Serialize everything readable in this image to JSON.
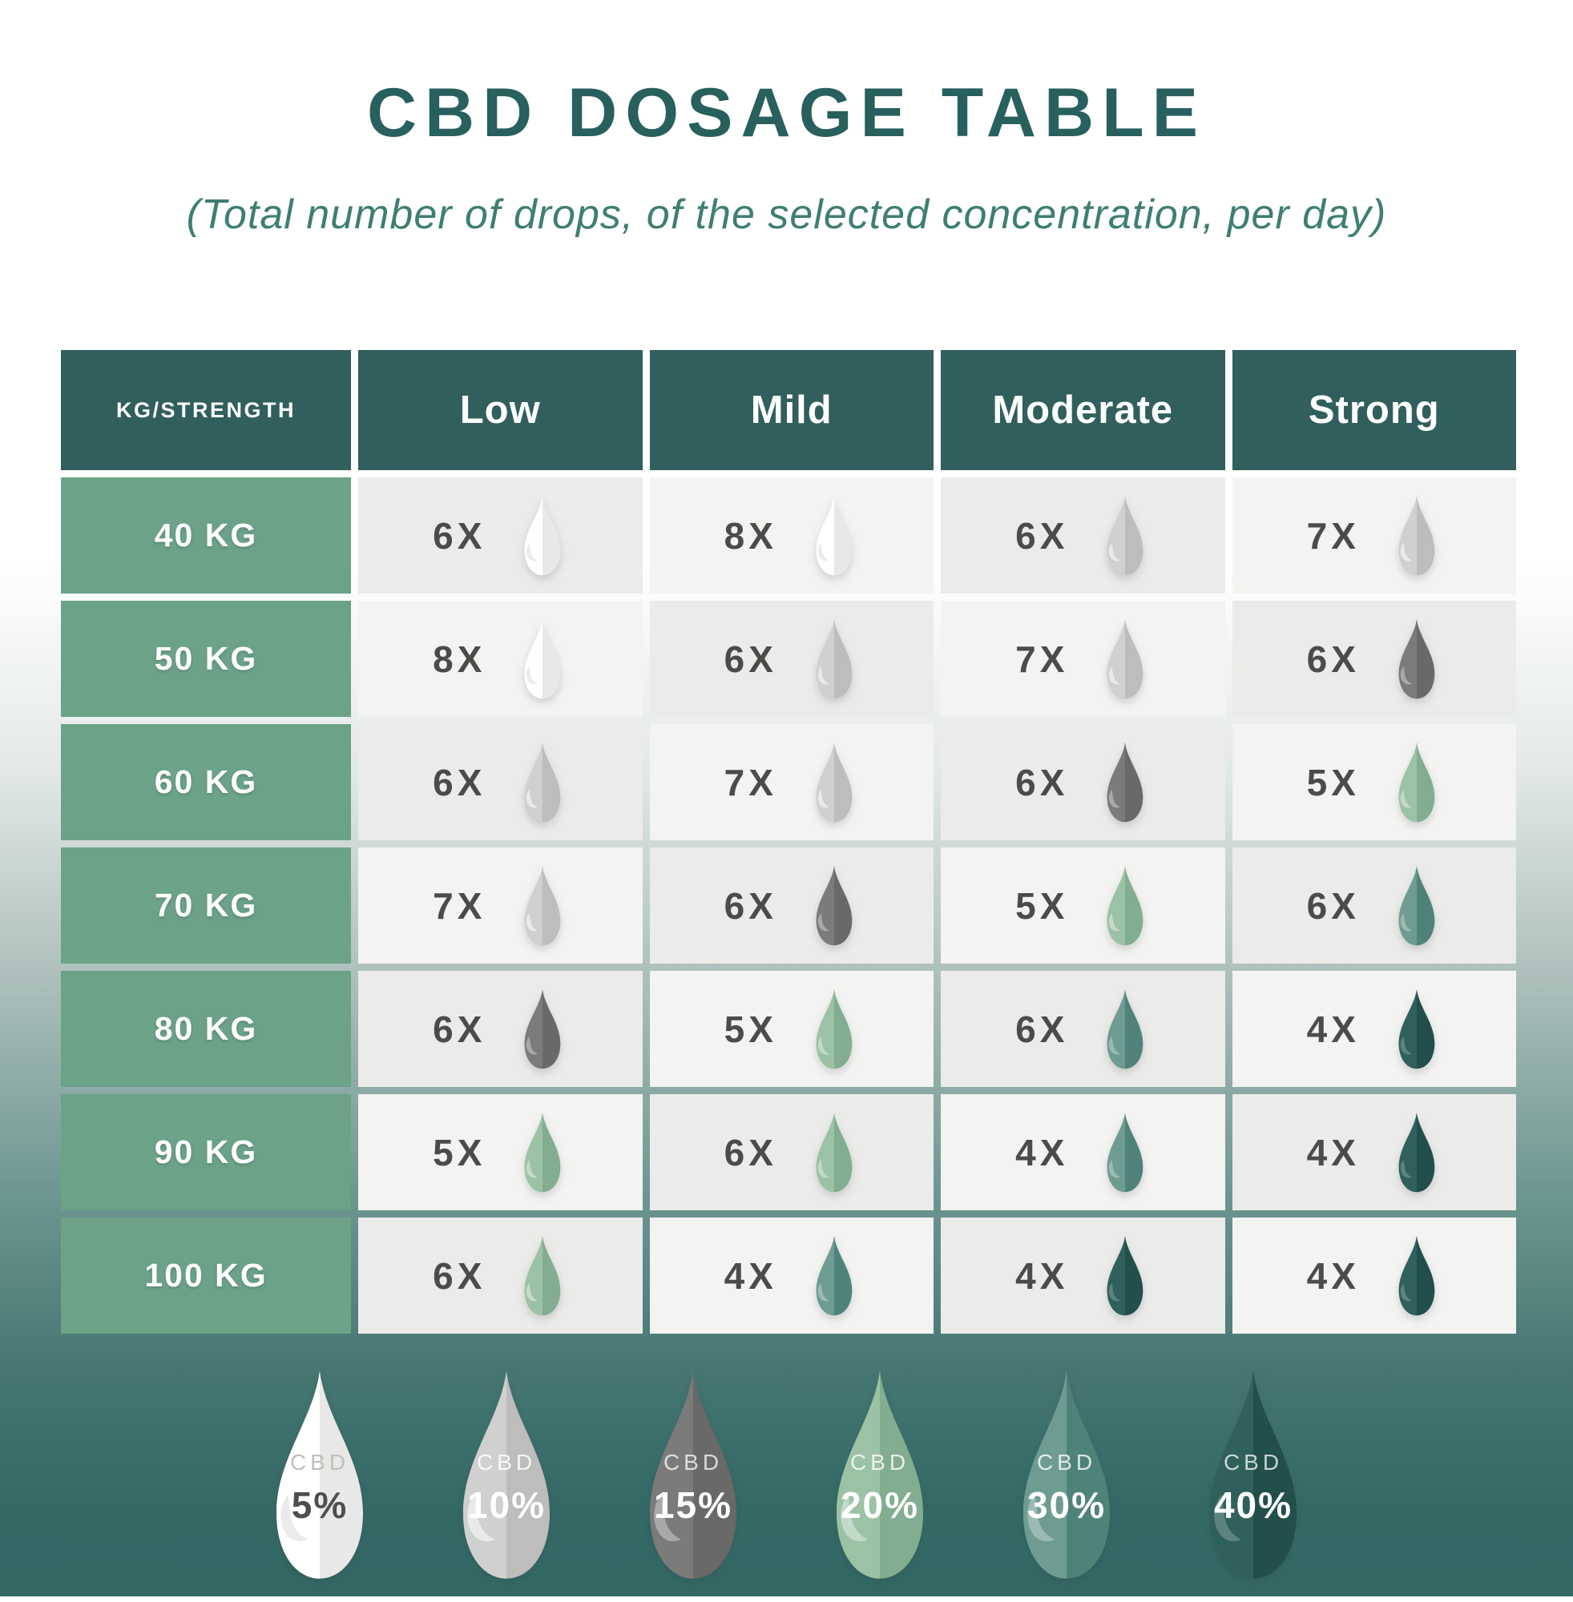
{
  "title": "CBD DOSAGE TABLE",
  "subtitle": "(Total number of drops, of the selected concentration, per day)",
  "table": {
    "corner_header": "KG/STRENGTH",
    "columns": [
      "Low",
      "Mild",
      "Moderate",
      "Strong"
    ],
    "rows": [
      {
        "weight": "40 KG",
        "cells": [
          {
            "count": "6X",
            "cbd": "5"
          },
          {
            "count": "8X",
            "cbd": "5"
          },
          {
            "count": "6X",
            "cbd": "10"
          },
          {
            "count": "7X",
            "cbd": "10"
          }
        ]
      },
      {
        "weight": "50 KG",
        "cells": [
          {
            "count": "8X",
            "cbd": "5"
          },
          {
            "count": "6X",
            "cbd": "10"
          },
          {
            "count": "7X",
            "cbd": "10"
          },
          {
            "count": "6X",
            "cbd": "15"
          }
        ]
      },
      {
        "weight": "60 KG",
        "cells": [
          {
            "count": "6X",
            "cbd": "10"
          },
          {
            "count": "7X",
            "cbd": "10"
          },
          {
            "count": "6X",
            "cbd": "15"
          },
          {
            "count": "5X",
            "cbd": "20"
          }
        ]
      },
      {
        "weight": "70 KG",
        "cells": [
          {
            "count": "7X",
            "cbd": "10"
          },
          {
            "count": "6X",
            "cbd": "15"
          },
          {
            "count": "5X",
            "cbd": "20"
          },
          {
            "count": "6X",
            "cbd": "30"
          }
        ]
      },
      {
        "weight": "80 KG",
        "cells": [
          {
            "count": "6X",
            "cbd": "15"
          },
          {
            "count": "5X",
            "cbd": "20"
          },
          {
            "count": "6X",
            "cbd": "30"
          },
          {
            "count": "4X",
            "cbd": "40"
          }
        ]
      },
      {
        "weight": "90 KG",
        "cells": [
          {
            "count": "5X",
            "cbd": "20"
          },
          {
            "count": "6X",
            "cbd": "20"
          },
          {
            "count": "4X",
            "cbd": "30"
          },
          {
            "count": "4X",
            "cbd": "40"
          }
        ]
      },
      {
        "weight": "100 KG",
        "cells": [
          {
            "count": "6X",
            "cbd": "20"
          },
          {
            "count": "4X",
            "cbd": "30"
          },
          {
            "count": "4X",
            "cbd": "40"
          },
          {
            "count": "4X",
            "cbd": "40"
          }
        ]
      }
    ]
  },
  "legend": {
    "label": "CBD",
    "items": [
      {
        "key": "5",
        "percent": "5%",
        "cbd_color": "#bfbfbd",
        "pct_color": "#4e4e4c"
      },
      {
        "key": "10",
        "percent": "10%",
        "cbd_color": "rgba(255,255,255,.85)",
        "pct_color": "#ffffff"
      },
      {
        "key": "15",
        "percent": "15%",
        "cbd_color": "rgba(255,255,255,.75)",
        "pct_color": "#ffffff"
      },
      {
        "key": "20",
        "percent": "20%",
        "cbd_color": "rgba(255,255,255,.80)",
        "pct_color": "#ffffff"
      },
      {
        "key": "30",
        "percent": "30%",
        "cbd_color": "rgba(255,255,255,.80)",
        "pct_color": "#ffffff"
      },
      {
        "key": "40",
        "percent": "40%",
        "cbd_color": "rgba(255,255,255,.75)",
        "pct_color": "#ffffff"
      }
    ]
  },
  "colors": {
    "title": "#27605d",
    "subtitle": "#3e7e73",
    "header_bg": "#305f5d",
    "weight_bg": "#6ba288",
    "cell_bg_dark": "#ebebe9",
    "cell_bg_light": "#f3f3f1",
    "count_text": "#4b4b49",
    "background_teal": "#336865",
    "drops": {
      "5": {
        "left": "#ffffff",
        "right": "#e8e8e6",
        "hi": "rgba(0,0,0,0.08)"
      },
      "10": {
        "left": "#d0d0ce",
        "right": "#bdbdbb",
        "hi": "rgba(255,255,255,0.55)"
      },
      "15": {
        "left": "#7b7b79",
        "right": "#696967",
        "hi": "rgba(255,255,255,0.35)"
      },
      "20": {
        "left": "#9cc2a6",
        "right": "#82ad90",
        "hi": "rgba(255,255,255,0.40)"
      },
      "30": {
        "left": "#6f9c91",
        "right": "#4f837a",
        "hi": "rgba(255,255,255,0.30)"
      },
      "40": {
        "left": "#2f605c",
        "right": "#224e4b",
        "hi": "rgba(255,255,255,0.22)"
      }
    }
  },
  "chart_data": {
    "type": "table",
    "title": "CBD DOSAGE TABLE",
    "subtitle": "(Total number of drops, of the selected concentration, per day)",
    "row_header": "KG/STRENGTH",
    "columns": [
      "Low",
      "Mild",
      "Moderate",
      "Strong"
    ],
    "rows": [
      "40 KG",
      "50 KG",
      "60 KG",
      "70 KG",
      "80 KG",
      "90 KG",
      "100 KG"
    ],
    "drops_per_day": [
      [
        6,
        8,
        6,
        7
      ],
      [
        8,
        6,
        7,
        6
      ],
      [
        6,
        7,
        6,
        5
      ],
      [
        7,
        6,
        5,
        6
      ],
      [
        6,
        5,
        6,
        4
      ],
      [
        5,
        6,
        4,
        4
      ],
      [
        6,
        4,
        4,
        4
      ]
    ],
    "concentration_percent": [
      [
        5,
        5,
        10,
        10
      ],
      [
        5,
        10,
        10,
        15
      ],
      [
        10,
        10,
        15,
        20
      ],
      [
        10,
        15,
        20,
        30
      ],
      [
        15,
        20,
        30,
        40
      ],
      [
        20,
        20,
        30,
        40
      ],
      [
        20,
        30,
        40,
        40
      ]
    ],
    "legend_concentrations": [
      "5%",
      "10%",
      "15%",
      "20%",
      "30%",
      "40%"
    ],
    "legend_position": "bottom"
  }
}
